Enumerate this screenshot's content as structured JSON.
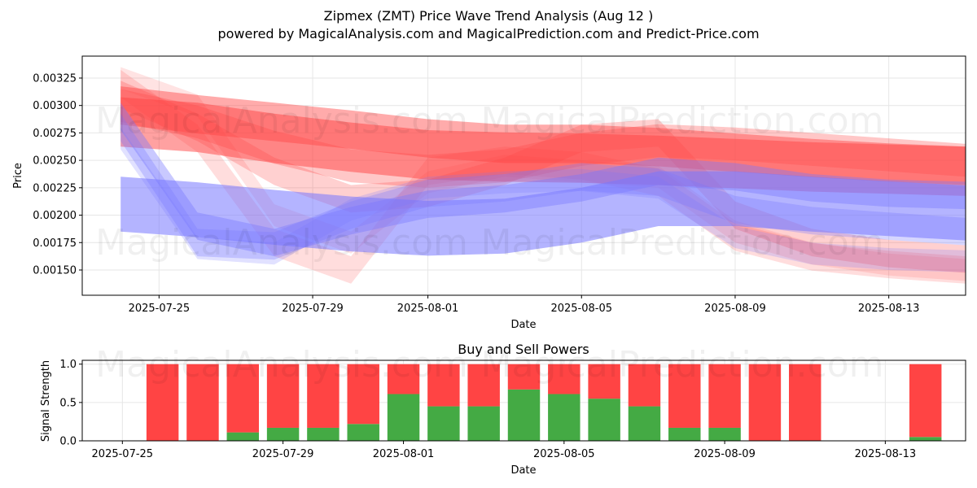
{
  "title_line1": "Zipmex (ZMT) Price Wave Trend Analysis (Aug 12 )",
  "title_line2": "powered by MagicalAnalysis.com and MagicalPrediction.com and Predict-Price.com",
  "watermarks": [
    "MagicalAnalysis.com",
    "MagicalPrediction.com"
  ],
  "colors": {
    "red": "#ff4444",
    "blue": "#7777ff",
    "green": "#44aa44",
    "sell": "#ff4444"
  },
  "chart_data": [
    {
      "type": "area",
      "title": "",
      "xlabel": "Date",
      "ylabel": "Price",
      "x_range": [
        "2025-07-23",
        "2025-08-15"
      ],
      "ylim": [
        0.00127,
        0.00345
      ],
      "x_ticks": [
        "2025-07-25",
        "2025-07-29",
        "2025-08-01",
        "2025-08-05",
        "2025-08-09",
        "2025-08-13"
      ],
      "y_ticks": [
        "0.00150",
        "0.00175",
        "0.00200",
        "0.00225",
        "0.00250",
        "0.00275",
        "0.00300",
        "0.00325"
      ],
      "y_tick_values": [
        0.0015,
        0.00175,
        0.002,
        0.00225,
        0.0025,
        0.00275,
        0.003,
        0.00325
      ],
      "x": [
        "2025-07-24",
        "2025-07-26",
        "2025-07-28",
        "2025-07-30",
        "2025-08-01",
        "2025-08-03",
        "2025-08-05",
        "2025-08-07",
        "2025-08-09",
        "2025-08-11",
        "2025-08-13",
        "2025-08-15"
      ],
      "series": [
        {
          "name": "red-wave-1",
          "color": "red",
          "alpha": 0.5,
          "center": [
            0.00285,
            0.0028,
            0.0027,
            0.00262,
            0.00255,
            0.00253,
            0.00252,
            0.0025,
            0.00247,
            0.00244,
            0.00242,
            0.0024
          ],
          "width": 0.00045
        },
        {
          "name": "red-wave-2",
          "color": "red",
          "alpha": 0.45,
          "center": [
            0.003,
            0.00292,
            0.00285,
            0.00278,
            0.0027,
            0.00265,
            0.00265,
            0.00262,
            0.00257,
            0.00252,
            0.00248,
            0.00245
          ],
          "width": 0.00035
        },
        {
          "name": "red-wave-3",
          "color": "red",
          "alpha": 0.3,
          "center": [
            0.003,
            0.00285,
            0.00262,
            0.00245,
            0.0024,
            0.00245,
            0.0026,
            0.00268,
            0.00265,
            0.0026,
            0.00255,
            0.0025
          ],
          "width": 0.0003
        },
        {
          "name": "red-wave-4",
          "color": "red",
          "alpha": 0.25,
          "center": [
            0.0031,
            0.0028,
            0.0024,
            0.00215,
            0.0022,
            0.0024,
            0.0027,
            0.00275,
            0.002,
            0.00175,
            0.00165,
            0.0016
          ],
          "width": 0.00025
        },
        {
          "name": "red-wave-5",
          "color": "red",
          "alpha": 0.18,
          "center": [
            0.0032,
            0.0027,
            0.00175,
            0.0015,
            0.0024,
            0.0025,
            0.00245,
            0.0023,
            0.0018,
            0.00162,
            0.00155,
            0.0015
          ],
          "width": 0.00025
        },
        {
          "name": "red-wave-6",
          "color": "red",
          "alpha": 0.15,
          "center": [
            0.00325,
            0.003,
            0.002,
            0.00175,
            0.0023,
            0.00245,
            0.0024,
            0.00235,
            0.00185,
            0.00165,
            0.00155,
            0.0015
          ],
          "width": 0.0002
        },
        {
          "name": "blue-wave-1",
          "color": "blue",
          "alpha": 0.55,
          "center": [
            0.0021,
            0.00205,
            0.00198,
            0.00192,
            0.00188,
            0.0019,
            0.002,
            0.00215,
            0.00215,
            0.0021,
            0.00206,
            0.00202
          ],
          "width": 0.0005
        },
        {
          "name": "blue-wave-2",
          "color": "blue",
          "alpha": 0.4,
          "center": [
            0.0029,
            0.0019,
            0.00175,
            0.00195,
            0.0021,
            0.00215,
            0.00225,
            0.0024,
            0.00235,
            0.00225,
            0.0022,
            0.00218
          ],
          "width": 0.00025
        },
        {
          "name": "blue-wave-3",
          "color": "blue",
          "alpha": 0.3,
          "center": [
            0.0028,
            0.00175,
            0.00172,
            0.002,
            0.0022,
            0.00225,
            0.00235,
            0.0023,
            0.00205,
            0.00195,
            0.0019,
            0.00185
          ],
          "width": 0.00025
        },
        {
          "name": "blue-wave-4",
          "color": "blue",
          "alpha": 0.22,
          "center": [
            0.0027,
            0.0017,
            0.00165,
            0.00205,
            0.00225,
            0.0023,
            0.00232,
            0.00225,
            0.0018,
            0.00165,
            0.0016,
            0.00158
          ],
          "width": 0.0002
        }
      ]
    },
    {
      "type": "bar",
      "title": "Buy and Sell Powers",
      "xlabel": "Date",
      "ylabel": "Signal Strength",
      "x_range": [
        "2025-07-24",
        "2025-08-15"
      ],
      "ylim": [
        0,
        1.05
      ],
      "x_ticks": [
        "2025-07-25",
        "2025-07-29",
        "2025-08-01",
        "2025-08-05",
        "2025-08-09",
        "2025-08-13"
      ],
      "y_ticks": [
        "0.0",
        "0.5",
        "1.0"
      ],
      "y_tick_values": [
        0,
        0.5,
        1.0
      ],
      "categories": [
        "2025-07-26",
        "2025-07-27",
        "2025-07-28",
        "2025-07-29",
        "2025-07-30",
        "2025-07-31",
        "2025-08-01",
        "2025-08-02",
        "2025-08-03",
        "2025-08-04",
        "2025-08-05",
        "2025-08-06",
        "2025-08-07",
        "2025-08-08",
        "2025-08-09",
        "2025-08-10",
        "2025-08-11",
        "2025-08-14"
      ],
      "series": [
        {
          "name": "Buy",
          "color": "green",
          "values": [
            0.0,
            0.0,
            0.11,
            0.17,
            0.17,
            0.22,
            0.61,
            0.45,
            0.45,
            0.67,
            0.61,
            0.55,
            0.45,
            0.17,
            0.17,
            0.0,
            0.0,
            0.05
          ]
        },
        {
          "name": "Sell",
          "color": "sell",
          "values": [
            1.0,
            1.0,
            0.89,
            0.83,
            0.83,
            0.78,
            0.39,
            0.55,
            0.55,
            0.33,
            0.39,
            0.45,
            0.55,
            0.83,
            0.83,
            1.0,
            1.0,
            0.95
          ]
        }
      ]
    }
  ]
}
